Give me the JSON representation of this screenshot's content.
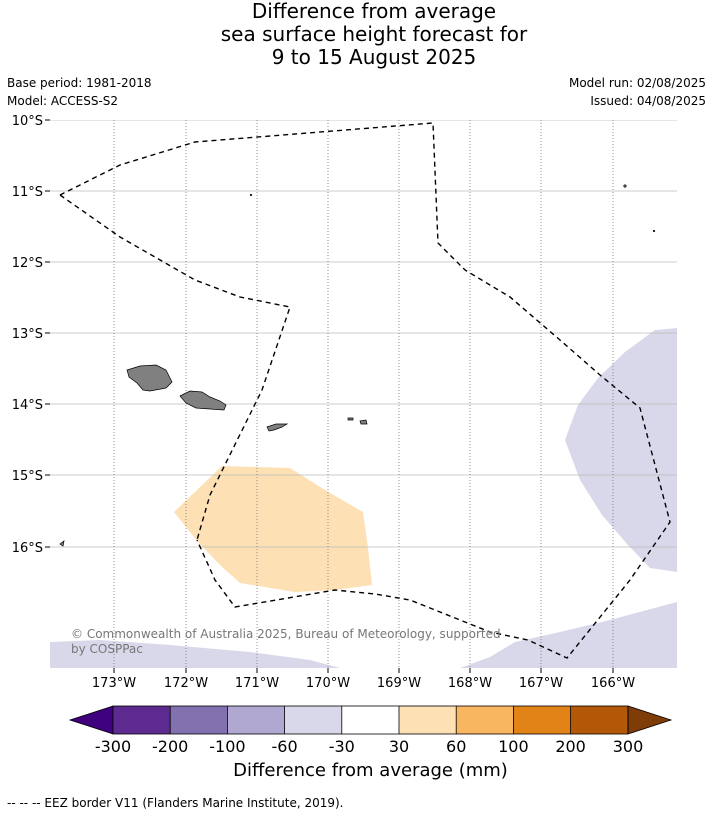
{
  "title": {
    "line1": "Difference from average",
    "line2": "sea surface height forecast for",
    "line3": "9 to 15 August 2025"
  },
  "meta": {
    "base_period": "Base period: 1981-2018",
    "model": "Model: ACCESS-S2",
    "model_run": "Model run: 02/08/2025",
    "issued": "Issued: 04/08/2025"
  },
  "map": {
    "lon_labels": [
      "173°W",
      "172°W",
      "171°W",
      "170°W",
      "169°W",
      "168°W",
      "167°W",
      "166°W"
    ],
    "lat_labels": [
      "10°S",
      "11°S",
      "12°S",
      "13°S",
      "14°S",
      "15°S",
      "16°S"
    ],
    "copyright": "© Commonwealth of Australia 2025, Bureau of Meteorology, supported by COSPPac",
    "copyright_line1": "© Commonwealth of Australia 2025, Bureau of Meteorology, supported",
    "copyright_line2": "by COSPPac",
    "colors": {
      "land": "#808080",
      "orange_anomaly": "#fde0b4",
      "lavender_anomaly": "#d8d8ea",
      "eez_line": "#000000",
      "grid": "#bbbbbb"
    }
  },
  "colorbar": {
    "title": "Difference from average (mm)",
    "tick_labels": [
      "-300",
      "-200",
      "-100",
      "-60",
      "-30",
      "30",
      "60",
      "100",
      "200",
      "300"
    ],
    "colors": [
      "#3f007d",
      "#5d2b8f",
      "#8370ae",
      "#b1a8d2",
      "#d8d8ea",
      "#ffffff",
      "#fde0b4",
      "#f9b660",
      "#e28317",
      "#b35806",
      "#7f3b08"
    ]
  },
  "footer": {
    "legend": "--  --  -- EEZ border V11 (Flanders Marine Institute, 2019)."
  }
}
